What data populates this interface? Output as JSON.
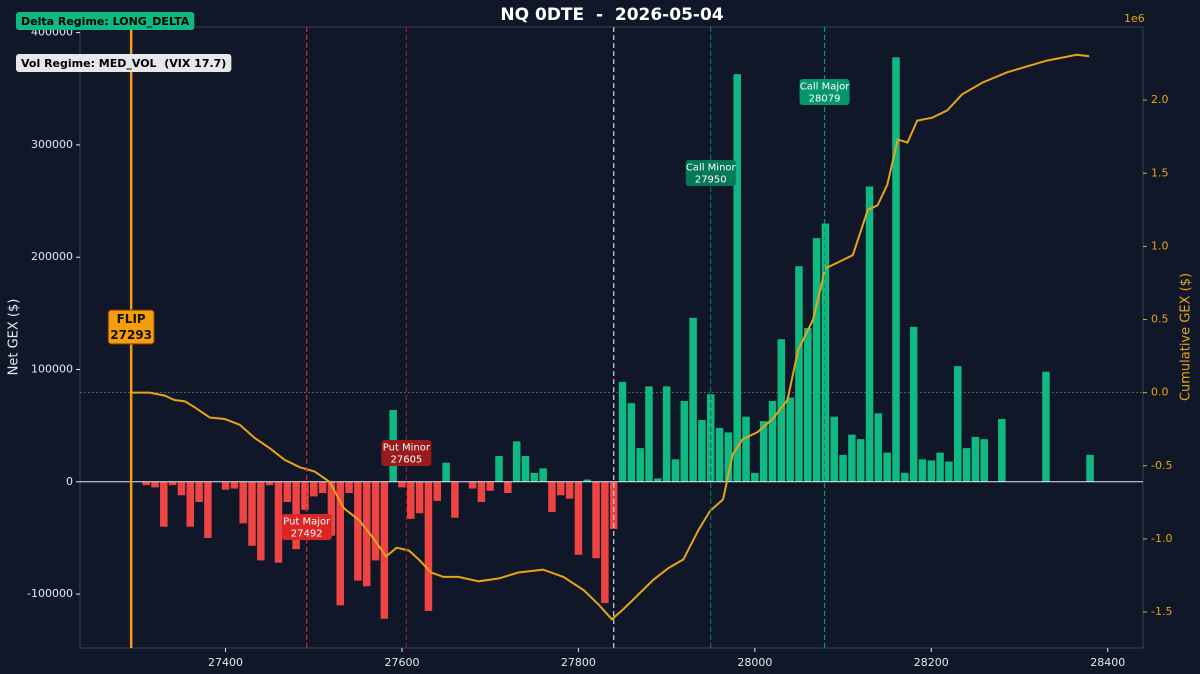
{
  "chart_data": {
    "type": "bar",
    "title": "NQ 0DTE  -  2026-05-04",
    "ylabel": "Net GEX ($)",
    "y2label": "Cumulative GEX ($)",
    "y2_offset_label": "1e6",
    "annotations": [
      "Delta Regime: LONG_DELTA",
      "Vol Regime: MED_VOL  (VIX 17.7)"
    ],
    "xlim": [
      27235,
      28440
    ],
    "xticks": [
      27400,
      27600,
      27800,
      28000,
      28200,
      28400
    ],
    "ylim": [
      -148000,
      405000
    ],
    "yticks": [
      -100000,
      0,
      100000,
      200000,
      300000,
      400000
    ],
    "y2lim": [
      -1.746,
      2.5
    ],
    "y2ticks": [
      -1.5,
      {
        "value": -1,
        "label": "-1.0"
      },
      -0.5,
      {
        "value": 0,
        "label": "0.0"
      },
      0.5,
      {
        "value": 1,
        "label": "1.0"
      },
      1.5,
      {
        "value": 2,
        "label": "2.0"
      }
    ],
    "series": [
      {
        "type": "bar",
        "color": "#10b981",
        "negative_color": "#ef4444",
        "x": [
          27310,
          27320,
          27330,
          27340,
          27350,
          27360,
          27370,
          27380,
          27400,
          27410,
          27420,
          27430,
          27440,
          27450,
          27460,
          27470,
          27480,
          27490,
          27500,
          27510,
          27520,
          27530,
          27540,
          27550,
          27560,
          27570,
          27580,
          27590,
          27600,
          27610,
          27620,
          27630,
          27640,
          27650,
          27660,
          27680,
          27690,
          27700,
          27710,
          27720,
          27730,
          27740,
          27750,
          27760,
          27770,
          27780,
          27790,
          27800,
          27810,
          27820,
          27830,
          27840,
          27850,
          27860,
          27870,
          27880,
          27890,
          27900,
          27910,
          27920,
          27930,
          27940,
          27950,
          27960,
          27970,
          27980,
          27990,
          28000,
          28010,
          28020,
          28030,
          28040,
          28050,
          28060,
          28070,
          28080,
          28090,
          28100,
          28110,
          28120,
          28130,
          28140,
          28150,
          28160,
          28170,
          28180,
          28190,
          28200,
          28210,
          28220,
          28230,
          28240,
          28250,
          28260,
          28280,
          28330,
          28380
        ],
        "values": [
          -3000,
          -5000,
          -40000,
          -3000,
          -12000,
          -40000,
          -18000,
          -50000,
          -7000,
          -6000,
          -37000,
          -57000,
          -70000,
          -3000,
          -72000,
          -18000,
          -60000,
          -25000,
          -13000,
          -10000,
          -48000,
          -110000,
          -10000,
          -88000,
          -93000,
          -70000,
          -122000,
          64000,
          -5000,
          -33000,
          -28000,
          -115000,
          -17000,
          17000,
          -32000,
          -6000,
          -18000,
          -8000,
          23000,
          -10000,
          36000,
          23000,
          8000,
          12000,
          -27000,
          -12000,
          -15000,
          -65000,
          2000,
          -68000,
          -108000,
          -42000,
          89000,
          70000,
          30000,
          85000,
          3000,
          85000,
          20000,
          72000,
          146000,
          55000,
          78000,
          48000,
          44000,
          363000,
          58000,
          8000,
          54000,
          72000,
          127000,
          75000,
          192000,
          137000,
          217000,
          230000,
          58000,
          24000,
          42000,
          38000,
          263000,
          61000,
          26000,
          378000,
          8000,
          138000,
          20000,
          19000,
          26000,
          18000,
          103000,
          30000,
          40000,
          38000,
          56000,
          98000,
          24000
        ]
      },
      {
        "type": "line",
        "axis": "y2",
        "color": "#e8a317",
        "x": [
          27293,
          27314,
          27331,
          27342,
          27354,
          27365,
          27382,
          27399,
          27416,
          27433,
          27450,
          27467,
          27484,
          27501,
          27518,
          27534,
          27551,
          27568,
          27582,
          27594,
          27608,
          27619,
          27633,
          27647,
          27664,
          27687,
          27710,
          27732,
          27760,
          27783,
          27806,
          27823,
          27838,
          27851,
          27868,
          27885,
          27902,
          27919,
          27936,
          27949,
          27964,
          27975,
          27986,
          28003,
          28020,
          28037,
          28049,
          28066,
          28080,
          28094,
          28111,
          28128,
          28139,
          28150,
          28162,
          28173,
          28184,
          28201,
          28218,
          28235,
          28258,
          28286,
          28331,
          28365,
          28379
        ],
        "values": [
          0,
          0,
          -0.02,
          -0.05,
          -0.06,
          -0.1,
          -0.17,
          -0.18,
          -0.22,
          -0.31,
          -0.38,
          -0.46,
          -0.51,
          -0.54,
          -0.61,
          -0.79,
          -0.87,
          -1.0,
          -1.12,
          -1.06,
          -1.08,
          -1.14,
          -1.23,
          -1.26,
          -1.26,
          -1.29,
          -1.27,
          -1.23,
          -1.21,
          -1.26,
          -1.35,
          -1.45,
          -1.55,
          -1.48,
          -1.38,
          -1.28,
          -1.2,
          -1.14,
          -0.94,
          -0.81,
          -0.73,
          -0.42,
          -0.32,
          -0.27,
          -0.18,
          -0.05,
          0.29,
          0.5,
          0.85,
          0.89,
          0.94,
          1.25,
          1.28,
          1.42,
          1.73,
          1.71,
          1.86,
          1.88,
          1.93,
          2.04,
          2.12,
          2.19,
          2.27,
          2.31,
          2.3
        ]
      }
    ],
    "levels": [
      {
        "name": "FLIP",
        "value": 27293,
        "color": "#f59e0b",
        "style": "solid"
      },
      {
        "name": "Put Major",
        "value": 27492,
        "color": "#dc2626",
        "style": "dashed"
      },
      {
        "name": "Put Minor",
        "value": 27605,
        "color": "#991b1b",
        "style": "dashed"
      },
      {
        "value": 27840,
        "color": "#cbd5e1",
        "style": "dashed"
      },
      {
        "name": "Call Minor",
        "value": 27950,
        "color": "#047857",
        "style": "dashed"
      },
      {
        "name": "Call Major",
        "value": 28079,
        "color": "#059669",
        "style": "dashed"
      }
    ]
  }
}
